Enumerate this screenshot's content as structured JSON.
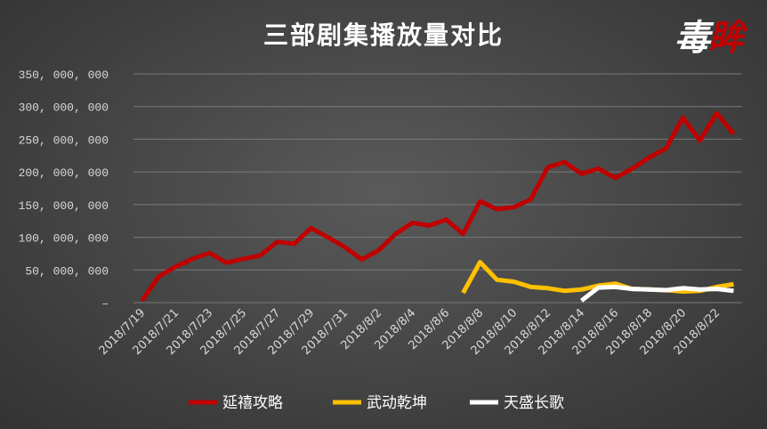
{
  "logo": {
    "text_main": "毒",
    "text_accent": "眸"
  },
  "chart_data": {
    "type": "line",
    "title": "三部剧集播放量对比",
    "xlabel": "",
    "ylabel": "",
    "ylim": [
      0,
      350000000
    ],
    "yticks": [
      0,
      50000000,
      100000000,
      150000000,
      200000000,
      250000000,
      300000000,
      350000000
    ],
    "ytick_labels": [
      "–",
      "50, 000, 000",
      "100, 000, 000",
      "150, 000, 000",
      "200, 000, 000",
      "250, 000, 000",
      "300, 000, 000",
      "350, 000, 000"
    ],
    "x": [
      "2018/7/19",
      "2018/7/20",
      "2018/7/21",
      "2018/7/22",
      "2018/7/23",
      "2018/7/24",
      "2018/7/25",
      "2018/7/26",
      "2018/7/27",
      "2018/7/28",
      "2018/7/29",
      "2018/7/30",
      "2018/7/31",
      "2018/8/1",
      "2018/8/2",
      "2018/8/3",
      "2018/8/4",
      "2018/8/5",
      "2018/8/6",
      "2018/8/7",
      "2018/8/8",
      "2018/8/9",
      "2018/8/10",
      "2018/8/11",
      "2018/8/12",
      "2018/8/13",
      "2018/8/14",
      "2018/8/15",
      "2018/8/16",
      "2018/8/17",
      "2018/8/18",
      "2018/8/19",
      "2018/8/20",
      "2018/8/21",
      "2018/8/22",
      "2018/8/23"
    ],
    "x_tick_labels": [
      "2018/7/19",
      "2018/7/21",
      "2018/7/23",
      "2018/7/25",
      "2018/7/27",
      "2018/7/29",
      "2018/7/31",
      "2018/8/2",
      "2018/8/4",
      "2018/8/6",
      "2018/8/8",
      "2018/8/10",
      "2018/8/12",
      "2018/8/14",
      "2018/8/16",
      "2018/8/18",
      "2018/8/20",
      "2018/8/22"
    ],
    "grid": true,
    "legend_position": "bottom",
    "series": [
      {
        "name": "延禧攻略",
        "color": "#c00000",
        "values": [
          3000000,
          40000000,
          55000000,
          67000000,
          76000000,
          61000000,
          67000000,
          72000000,
          93000000,
          90000000,
          114000000,
          100000000,
          85000000,
          66000000,
          80000000,
          105000000,
          122000000,
          118000000,
          127000000,
          105000000,
          155000000,
          143000000,
          146000000,
          158000000,
          207000000,
          215000000,
          197000000,
          205000000,
          191000000,
          205000000,
          222000000,
          236000000,
          283000000,
          248000000,
          290000000,
          258000000
        ]
      },
      {
        "name": "武动乾坤",
        "color": "#ffc000",
        "values": [
          null,
          null,
          null,
          null,
          null,
          null,
          null,
          null,
          null,
          null,
          null,
          null,
          null,
          null,
          null,
          null,
          null,
          null,
          null,
          15000000,
          62000000,
          35000000,
          32000000,
          24000000,
          22000000,
          18000000,
          20000000,
          26000000,
          29000000,
          21000000,
          20000000,
          19000000,
          17000000,
          18000000,
          24000000,
          28000000
        ]
      },
      {
        "name": "天盛长歌",
        "color": "#ffffff",
        "values": [
          null,
          null,
          null,
          null,
          null,
          null,
          null,
          null,
          null,
          null,
          null,
          null,
          null,
          null,
          null,
          null,
          null,
          null,
          null,
          null,
          null,
          null,
          null,
          null,
          null,
          null,
          3000000,
          23000000,
          24000000,
          21000000,
          20000000,
          19000000,
          22000000,
          20000000,
          21000000,
          18000000
        ]
      }
    ]
  }
}
